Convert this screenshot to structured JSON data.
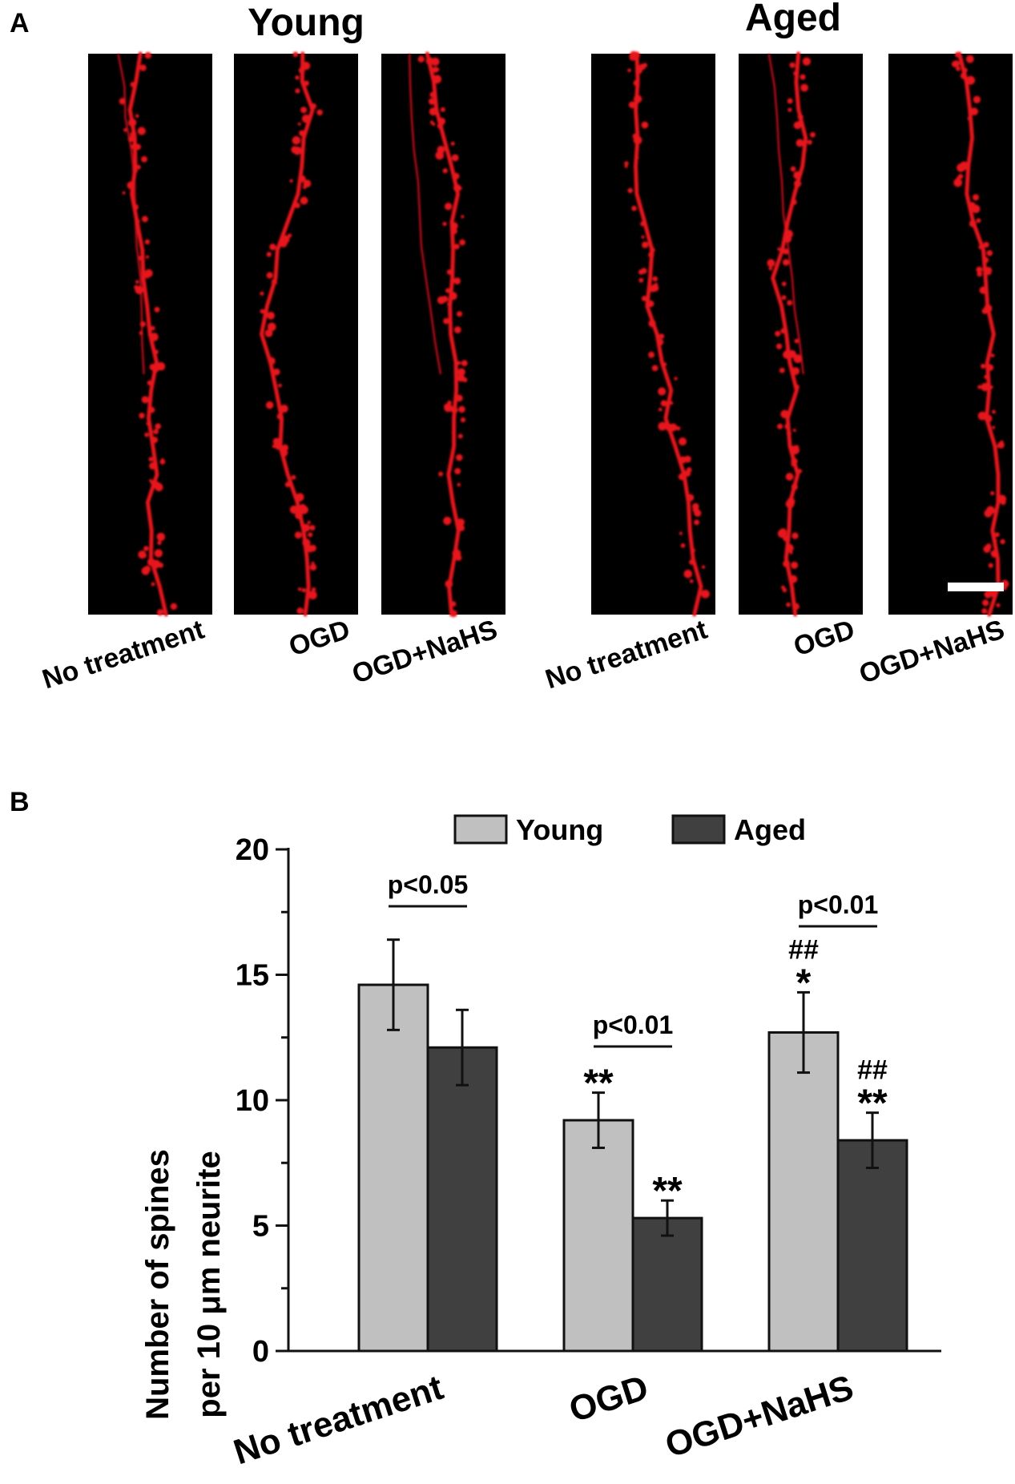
{
  "panel_a": {
    "label": "A",
    "groups": [
      {
        "title": "Young",
        "images": [
          "No treatment",
          "OGD",
          "OGD+NaHS"
        ]
      },
      {
        "title": "Aged",
        "images": [
          "No treatment",
          "OGD",
          "OGD+NaHS"
        ]
      }
    ],
    "colors": {
      "background": "#000000",
      "stain": "#e8141e",
      "scale_bar": "#ffffff"
    }
  },
  "panel_b": {
    "label": "B"
  },
  "chart_data": {
    "type": "bar",
    "categories": [
      "No treatment",
      "OGD",
      "OGD+NaHS"
    ],
    "series": [
      {
        "name": "Young",
        "color": "#c0c0c0",
        "values": [
          14.6,
          9.2,
          12.7
        ],
        "errors": [
          1.8,
          1.1,
          1.6
        ],
        "markers": [
          "",
          "**",
          "##\n*"
        ]
      },
      {
        "name": "Aged",
        "color": "#404040",
        "values": [
          12.1,
          5.3,
          8.4
        ],
        "errors": [
          1.5,
          0.7,
          1.1
        ],
        "markers": [
          "",
          "**",
          "##\n**"
        ]
      }
    ],
    "comparisons": [
      {
        "category": "No treatment",
        "label": "p<0.05"
      },
      {
        "category": "OGD",
        "label": "p<0.01"
      },
      {
        "category": "OGD+NaHS",
        "label": "p<0.01"
      }
    ],
    "ylabel_lines": [
      "Number of spines",
      "per 10 μm neurite"
    ],
    "xlabel": "",
    "ylim": [
      0,
      20
    ],
    "yticks": [
      0,
      5,
      10,
      15,
      20
    ],
    "legend": "top-center"
  }
}
